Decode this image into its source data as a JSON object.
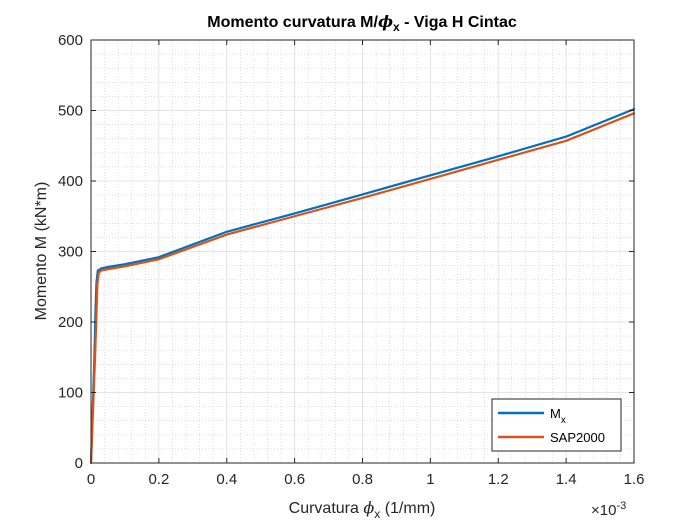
{
  "chart_data": {
    "type": "line",
    "title": {
      "main": "Momento curvatura M/",
      "phi": "ϕ",
      "sub": "x",
      "rest": " - Viga H Cintac"
    },
    "xlabel": {
      "main": "Curvatura ",
      "phi": "ϕ",
      "sub": "x",
      "rest": " (1/mm)"
    },
    "ylabel": "Momento M (kN*m)",
    "x_exponent": {
      "base": "×10",
      "power": "-3"
    },
    "xlim": [
      0,
      0.0016
    ],
    "ylim": [
      0,
      600
    ],
    "xticks": [
      0,
      0.0002,
      0.0004,
      0.0006,
      0.0008,
      0.001,
      0.0012,
      0.0014,
      0.0016
    ],
    "xtick_labels": [
      "0",
      "0.2",
      "0.4",
      "0.6",
      "0.8",
      "1",
      "1.2",
      "1.4",
      "1.6"
    ],
    "yticks": [
      0,
      100,
      200,
      300,
      400,
      500,
      600
    ],
    "ytick_labels": [
      "0",
      "100",
      "200",
      "300",
      "400",
      "500",
      "600"
    ],
    "grid": true,
    "minor_grid": true,
    "legend_position": "bottom-right",
    "series": [
      {
        "name": "M",
        "name_sub": "x",
        "color": "#0072BD",
        "x": [
          0,
          5e-06,
          1e-05,
          1.3e-05,
          1.6e-05,
          2e-05,
          3e-05,
          5e-05,
          0.0001,
          0.0002,
          0.0004,
          0.0006,
          0.0008,
          0.001,
          0.0012,
          0.0014,
          0.0016
        ],
        "y": [
          0,
          75,
          150,
          210,
          255,
          273,
          276,
          278,
          282,
          292,
          328,
          354,
          381,
          408,
          435,
          463,
          502
        ]
      },
      {
        "name": "SAP2000",
        "color": "#D95319",
        "x": [
          0,
          6e-06,
          1.2e-05,
          1.6e-05,
          1.9e-05,
          2.3e-05,
          3e-05,
          5e-05,
          0.0001,
          0.0002,
          0.0004,
          0.0006,
          0.0008,
          0.001,
          0.0012,
          0.0014,
          0.0016
        ],
        "y": [
          0,
          75,
          150,
          210,
          255,
          270,
          273,
          275,
          279,
          289,
          324,
          350,
          376,
          403,
          430,
          457,
          496
        ]
      }
    ]
  }
}
